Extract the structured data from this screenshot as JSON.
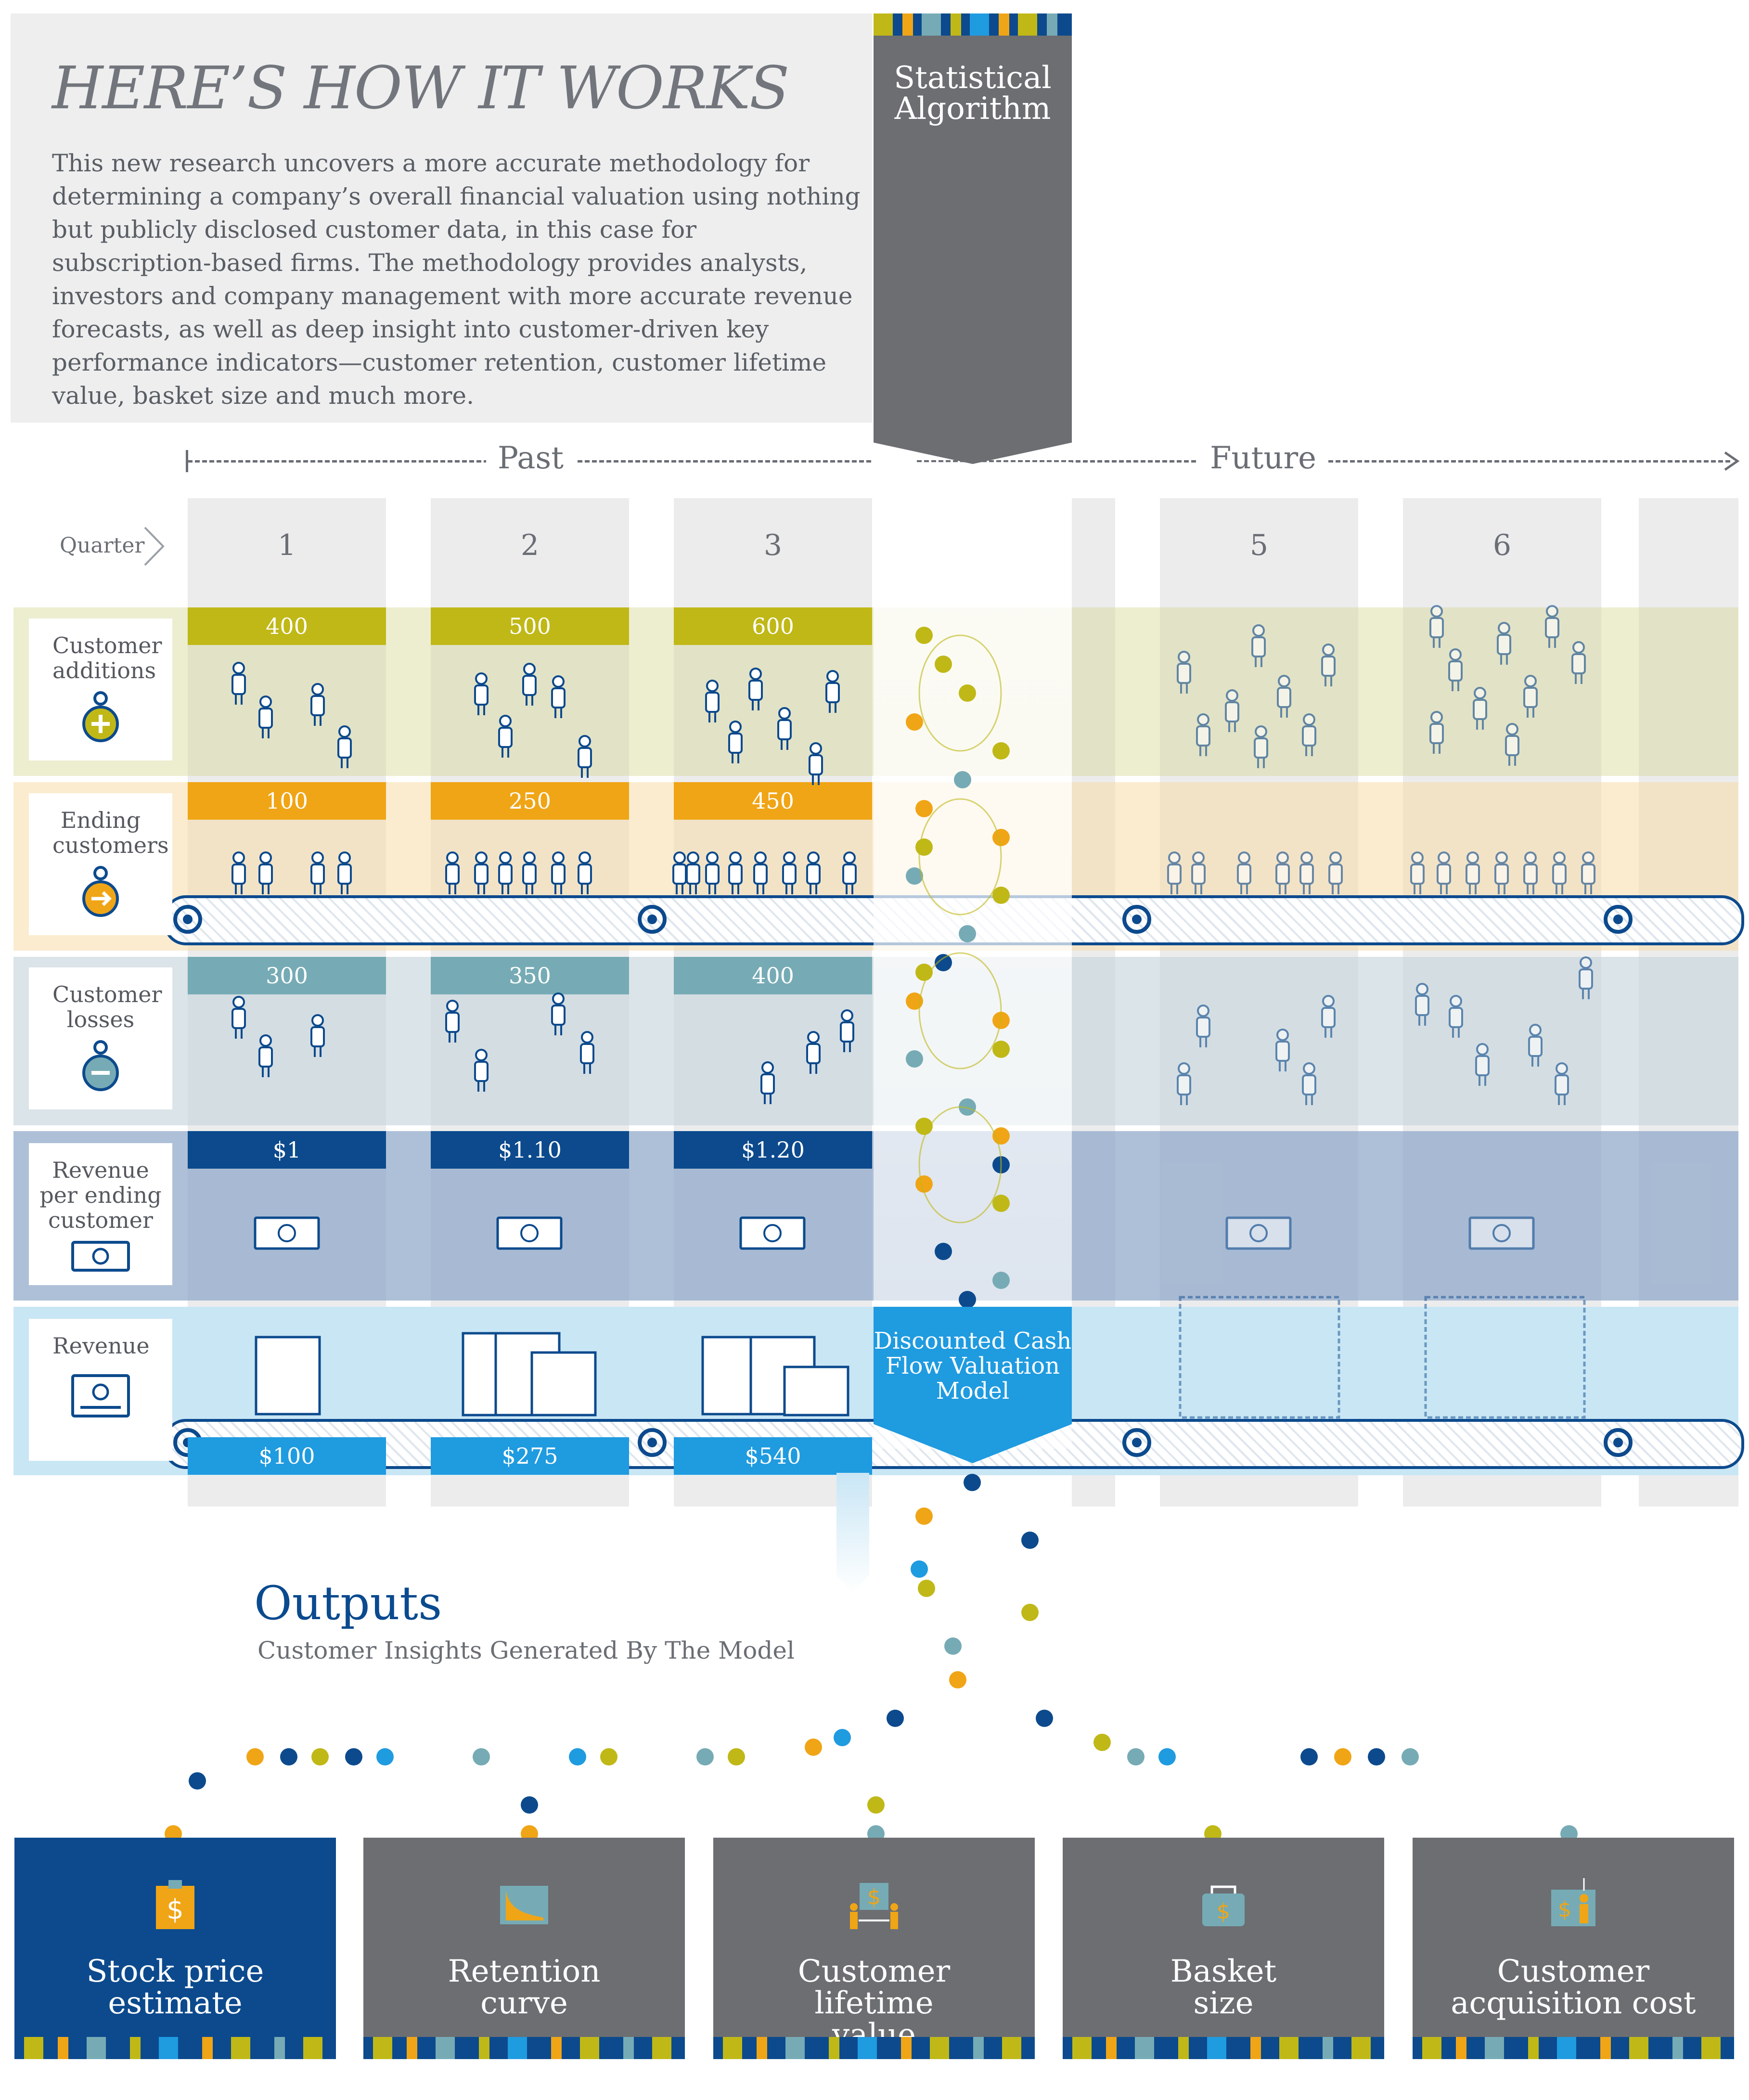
{
  "header": {
    "title": "HERE’S HOW IT WORKS",
    "intro": "This new research uncovers a more accurate methodology for determining a company’s overall financial valuation using nothing but publicly disclosed customer data, in this case for subscription-based firms. The methodology provides analysts, investors and company management with more accurate revenue forecasts, as well as deep insight into customer-driven key performance indicators—customer retention, customer lifetime value, basket size and much more."
  },
  "algorithm": {
    "label_line1": "Statistical",
    "label_line2": "Algorithm"
  },
  "model": {
    "label": "Discounted Cash Flow Valuation Model"
  },
  "timeline": {
    "past": "Past",
    "future": "Future",
    "quarter_label": "Quarter"
  },
  "quarters": [
    "1",
    "2",
    "3",
    "5",
    "6"
  ],
  "rows": {
    "additions": {
      "label": "Customer additions",
      "values": [
        "400",
        "500",
        "600"
      ],
      "color": "#c0b817"
    },
    "ending": {
      "label": "Ending customers",
      "values": [
        "100",
        "250",
        "450"
      ],
      "color": "#f0a516"
    },
    "losses": {
      "label": "Customer losses",
      "values": [
        "300",
        "350",
        "400"
      ],
      "color": "#76abb5"
    },
    "revenue_per": {
      "label": "Revenue per ending customer",
      "values": [
        "$1",
        "$1.10",
        "$1.20"
      ],
      "color": "#0c4a8d"
    },
    "revenue": {
      "label": "Revenue",
      "values": [
        "$100",
        "$275",
        "$540"
      ],
      "color": "#1f9be0"
    }
  },
  "outputs": {
    "title": "Outputs",
    "subtitle": "Customer Insights Generated By The Model",
    "cards": [
      {
        "label": "Stock price estimate",
        "icon": "stock-price-icon"
      },
      {
        "label": "Retention curve",
        "icon": "retention-curve-icon"
      },
      {
        "label": "Customer lifetime value",
        "icon": "lifetime-value-icon"
      },
      {
        "label": "Basket size",
        "icon": "basket-icon"
      },
      {
        "label": "Customer acquisition cost",
        "icon": "acquisition-cost-icon"
      }
    ]
  },
  "colors": {
    "navy": "#0c4a8d",
    "gray": "#6c6e72",
    "olive": "#c0b817",
    "orange": "#f0a516",
    "teal": "#76abb5",
    "blue": "#1f9be0",
    "light_blue": "#c9e6f5"
  }
}
